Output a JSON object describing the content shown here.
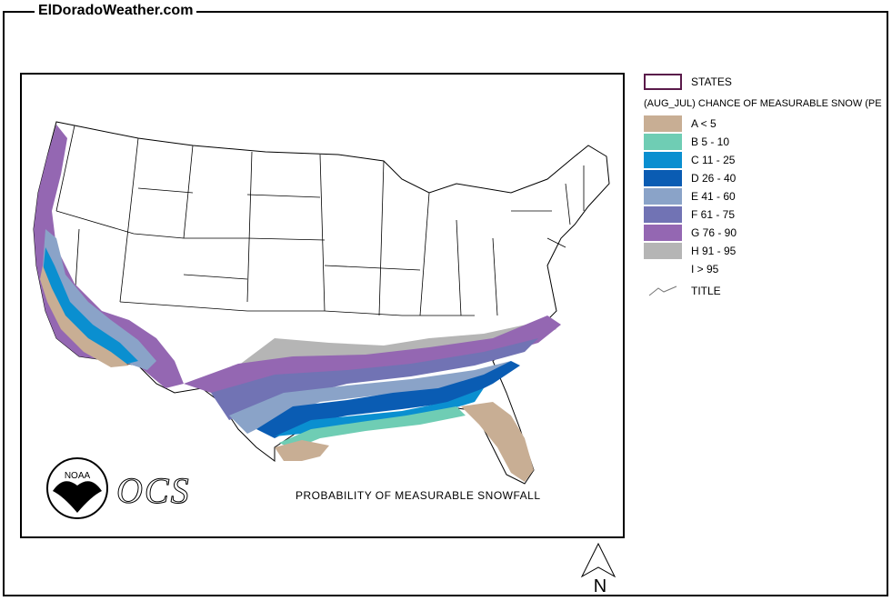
{
  "site": {
    "title": "ElDoradoWeather.com"
  },
  "map": {
    "caption": "PROBABILITY OF MEASURABLE SNOWFALL"
  },
  "logos": {
    "noaa_text": "NOAA",
    "ocs_text": "OCS"
  },
  "north_arrow": {
    "label": "N"
  },
  "legend": {
    "states_label": "STATES",
    "title": "(AUG_JUL) CHANCE OF MEASURABLE SNOW (PE",
    "classes": [
      {
        "label": "A < 5",
        "color": "#c8ae94"
      },
      {
        "label": "B 5 - 10",
        "color": "#6fcdb4"
      },
      {
        "label": "C 11 - 25",
        "color": "#0a8fd0"
      },
      {
        "label": "D 26 - 40",
        "color": "#0a5cb3"
      },
      {
        "label": "E 41 - 60",
        "color": "#8aa3c8"
      },
      {
        "label": "F 61 - 75",
        "color": "#7173b4"
      },
      {
        "label": "G 76 - 90",
        "color": "#9467b2"
      },
      {
        "label": "H 91 - 95",
        "color": "#b5b5b5"
      },
      {
        "label": "I > 95",
        "color": "#ffffff"
      }
    ],
    "title_line_label": "TITLE",
    "states_color": "#5a1a4a"
  }
}
